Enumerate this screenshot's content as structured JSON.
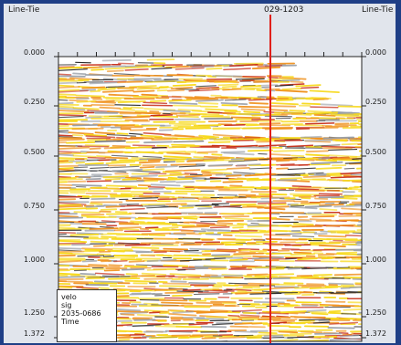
{
  "top_labels": {
    "left": "Line-Tie",
    "center": "029-1203",
    "right": "Line-Tie"
  },
  "time_axis": {
    "ticks": [
      "0.000",
      "0.250",
      "0.500",
      "0.750",
      "1.000",
      "1.250",
      "1.372"
    ]
  },
  "legend": {
    "lines": [
      "velo",
      "sig",
      "2035-0686",
      "Time"
    ]
  },
  "colors": {
    "background": "#1f3f86",
    "panel": "#e1e5ec",
    "marker_line": "#e0201a",
    "wiggle_yellow": "#f7d91a",
    "wiggle_orange": "#f0921e",
    "wiggle_red": "#c8301a",
    "wiggle_black": "#2a2a2a",
    "wiggle_gray": "#9aa0a8"
  }
}
